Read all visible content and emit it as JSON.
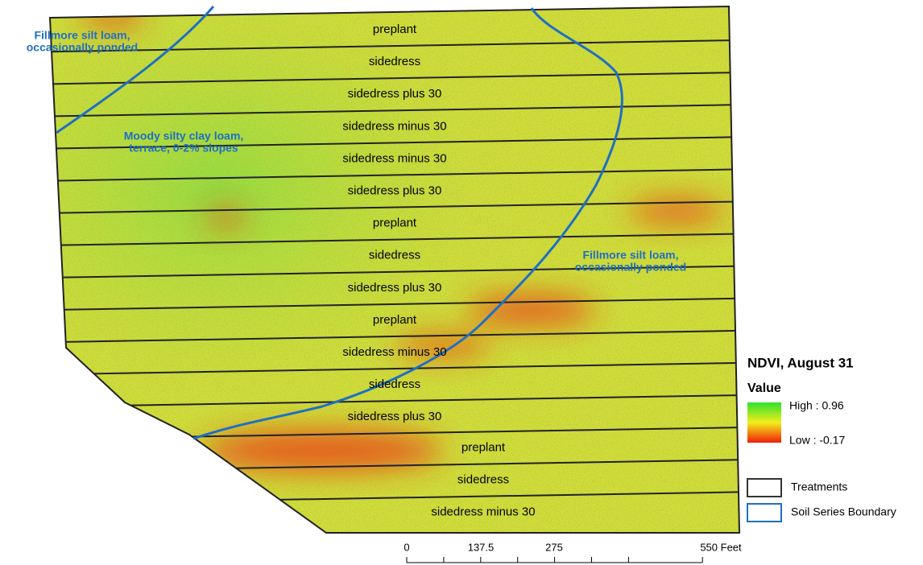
{
  "map": {
    "strips": [
      "preplant",
      "sidedress",
      "sidedress plus 30",
      "sidedress minus 30",
      "sidedress minus 30",
      "sidedress plus 30",
      "preplant",
      "sidedress",
      "sidedress plus 30",
      "preplant",
      "sidedress minus 30",
      "sidedress",
      "sidedress plus 30",
      "preplant",
      "sidedress",
      "sidedress minus 30"
    ],
    "soil_labels": [
      "Fillmore silt loam,\noccasionally ponded",
      "Moody silty clay loam,\nterrace, 0-2% slopes",
      "Fillmore silt loam,\noccasionally ponded"
    ]
  },
  "legend": {
    "title": "NDVI, August 31",
    "subtitle": "Value",
    "high": "High : 0.96",
    "low": "Low : -0.17",
    "items": [
      "Treatments",
      "Soil Series Boundary"
    ]
  },
  "scale_bar": {
    "labels": [
      "0",
      "137.5",
      "275",
      "550 Feet"
    ]
  }
}
